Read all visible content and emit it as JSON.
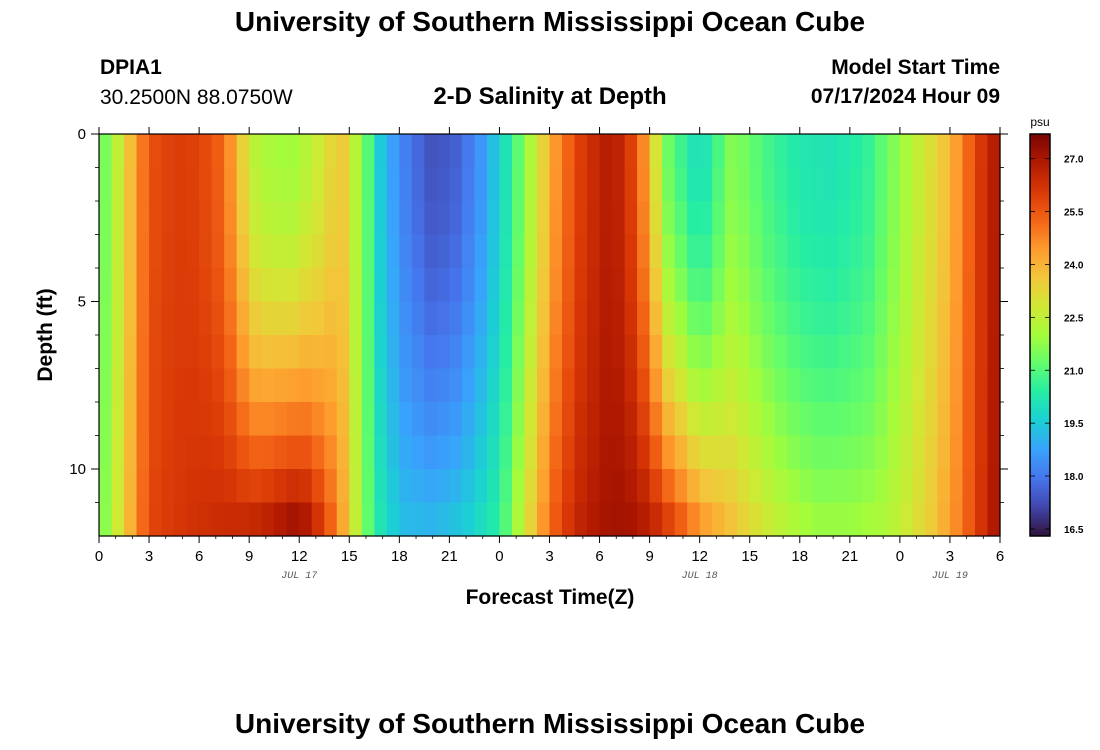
{
  "header": {
    "title": "University of Southern Mississippi Ocean Cube",
    "station_id": "DPIA1",
    "coords": "30.2500N  88.0750W",
    "subtitle": "2-D Salinity at Depth",
    "model_label": "Model Start Time",
    "model_time": "07/17/2024 Hour 09"
  },
  "footer": {
    "title": "University of Southern Mississippi Ocean Cube"
  },
  "chart_data": {
    "type": "heatmap",
    "title": "2-D Salinity at Depth",
    "xlabel": "Forecast Time(Z)",
    "ylabel": "Depth (ft)",
    "x_range": [
      0,
      54
    ],
    "y_range": [
      0,
      12
    ],
    "x_ticks": [
      0,
      3,
      6,
      9,
      12,
      15,
      18,
      21,
      24,
      27,
      30,
      33,
      36,
      39,
      42,
      45,
      48,
      51,
      54
    ],
    "x_tick_labels": [
      "0",
      "3",
      "6",
      "9",
      "12",
      "15",
      "18",
      "21",
      "0",
      "3",
      "6",
      "9",
      "12",
      "15",
      "18",
      "21",
      "0",
      "3",
      "6"
    ],
    "date_labels": [
      {
        "text": "JUL 17",
        "x": 12
      },
      {
        "text": "JUL 18",
        "x": 36
      },
      {
        "text": "JUL 19",
        "x": 51
      }
    ],
    "y_ticks": [
      0,
      5,
      10
    ],
    "y_tick_labels": [
      "0",
      "5",
      "10"
    ],
    "hour_step": 0.75,
    "depth_levels": 12,
    "colorbar": {
      "unit": "psu",
      "min": 16.3,
      "max": 27.7,
      "ticks": [
        16.5,
        18.0,
        19.5,
        21.0,
        22.5,
        24.0,
        25.5,
        27.0
      ],
      "tick_labels": [
        "16.5",
        "18.0",
        "19.5",
        "21.0",
        "22.5",
        "24.0",
        "25.5",
        "27.0"
      ],
      "colors": [
        "#30123b",
        "#4145ab",
        "#4675ed",
        "#39a2fc",
        "#1bcfd4",
        "#24eca6",
        "#61fc6c",
        "#a4fc3b",
        "#d1e834",
        "#f3c63a",
        "#fe9b2d",
        "#f36315",
        "#d93806",
        "#b11901",
        "#7a0402"
      ]
    },
    "surface_profile": [
      [
        0,
        21.0
      ],
      [
        1,
        22.3
      ],
      [
        2,
        24.0
      ],
      [
        3,
        25.6
      ],
      [
        4.5,
        26.0
      ],
      [
        6,
        25.9
      ],
      [
        7.5,
        25.2
      ],
      [
        8.5,
        23.5
      ],
      [
        9.5,
        22.2
      ],
      [
        11.5,
        21.9
      ],
      [
        13,
        22.6
      ],
      [
        14.5,
        23.7
      ],
      [
        16,
        21.3
      ],
      [
        17,
        19.2
      ],
      [
        18.5,
        18.0
      ],
      [
        20,
        17.3
      ],
      [
        21.5,
        17.6
      ],
      [
        23,
        18.6
      ],
      [
        24.5,
        20.2
      ],
      [
        26,
        22.4
      ],
      [
        27.5,
        24.7
      ],
      [
        29,
        26.1
      ],
      [
        30.5,
        26.8
      ],
      [
        31.5,
        26.5
      ],
      [
        32.5,
        25.0
      ],
      [
        34,
        21.4
      ],
      [
        36,
        19.8
      ],
      [
        38,
        21.7
      ],
      [
        40,
        20.8
      ],
      [
        42,
        20.2
      ],
      [
        44,
        20.1
      ],
      [
        46,
        20.5
      ],
      [
        47.5,
        21.5
      ],
      [
        49,
        22.5
      ],
      [
        50.5,
        23.5
      ],
      [
        51.5,
        24.5
      ],
      [
        52.5,
        25.7
      ],
      [
        53.3,
        26.6
      ],
      [
        54,
        27.0
      ]
    ],
    "bottom_profile": [
      [
        0,
        21.2
      ],
      [
        1,
        22.6
      ],
      [
        2,
        24.2
      ],
      [
        3,
        25.8
      ],
      [
        4.5,
        26.1
      ],
      [
        6,
        26.3
      ],
      [
        7.5,
        26.5
      ],
      [
        9,
        26.7
      ],
      [
        10.5,
        27.1
      ],
      [
        11.5,
        27.5
      ],
      [
        12.5,
        27.2
      ],
      [
        13.5,
        26.0
      ],
      [
        14.5,
        24.5
      ],
      [
        15.5,
        22.3
      ],
      [
        16.5,
        20.5
      ],
      [
        18,
        19.3
      ],
      [
        20,
        19.2
      ],
      [
        22,
        19.6
      ],
      [
        24,
        20.5
      ],
      [
        25.5,
        22.8
      ],
      [
        27,
        25.2
      ],
      [
        28.5,
        26.5
      ],
      [
        30,
        27.0
      ],
      [
        31.5,
        27.2
      ],
      [
        33,
        26.9
      ],
      [
        34.5,
        26.0
      ],
      [
        36,
        24.8
      ],
      [
        37.5,
        24.0
      ],
      [
        39,
        23.3
      ],
      [
        41,
        22.5
      ],
      [
        43,
        22.0
      ],
      [
        45,
        22.0
      ],
      [
        47,
        22.2
      ],
      [
        48.5,
        22.8
      ],
      [
        50,
        23.6
      ],
      [
        51.5,
        24.8
      ],
      [
        52.5,
        25.8
      ],
      [
        53.5,
        26.8
      ],
      [
        54,
        27.2
      ]
    ],
    "mixing_exponent": 1.8
  }
}
